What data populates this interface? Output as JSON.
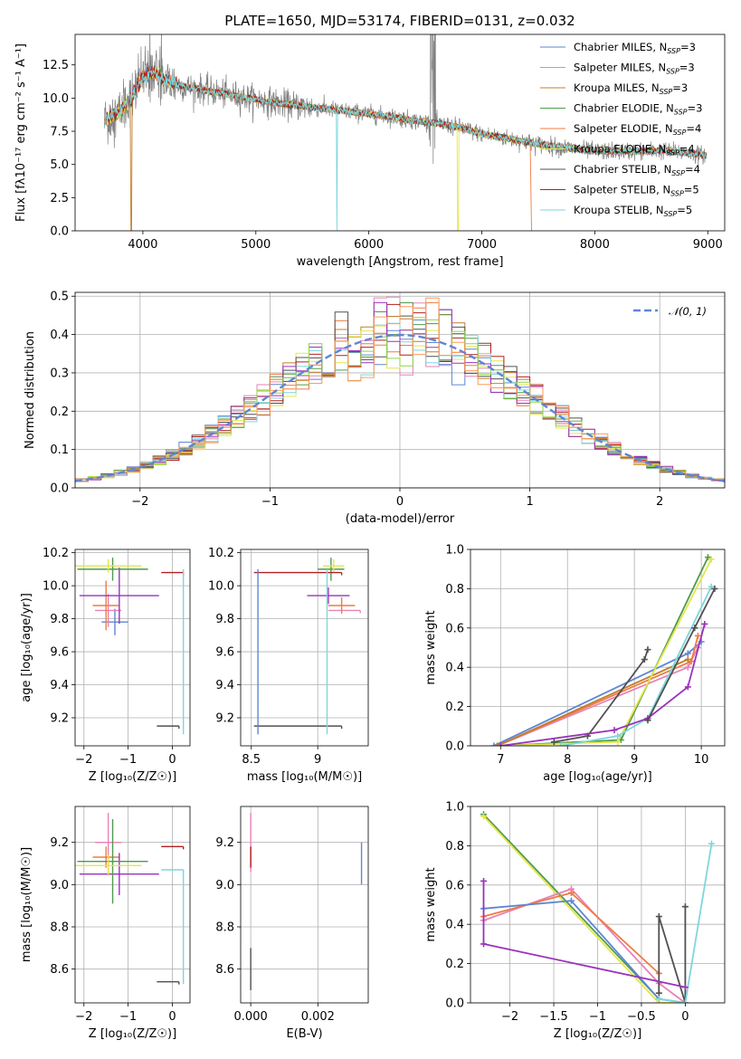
{
  "title": "PLATE=1650, MJD=53174, FIBERID=0131, z=0.032",
  "palette": [
    "#5f86d4",
    "#e883b7",
    "#c07f2b",
    "#4f9a4f",
    "#ef7b43",
    "#e4e64a",
    "#505050",
    "#b02020",
    "#7fd6dc",
    "#9933bb",
    "#8bd64a",
    "#ff9a57"
  ],
  "chart_data": [
    {
      "id": "spectrum",
      "type": "line",
      "xlabel": "wavelength [Angstrom, rest frame]",
      "ylabel": "Flux [fλ10⁻¹⁷ erg cm⁻² s⁻¹ A⁻¹]",
      "xlim": [
        3400,
        9150
      ],
      "ylim": [
        0,
        14.8
      ],
      "xticks": [
        4000,
        5000,
        6000,
        7000,
        8000,
        9000
      ],
      "yticks": [
        0.0,
        2.5,
        5.0,
        7.5,
        10.0,
        12.5
      ],
      "legend_position": "upper-right",
      "legend": [
        "Chabrier MILES, N_SSP=3",
        "Salpeter MILES, N_SSP=3",
        "Kroupa MILES, N_SSP=3",
        "Chabrier ELODIE, N_SSP=3",
        "Salpeter ELODIE, N_SSP=4",
        "Kroupa ELODIE, N_SSP=4",
        "Chabrier STELIB, N_SSP=4",
        "Salpeter STELIB, N_SSP=5",
        "Kroupa STELIB, N_SSP=5"
      ],
      "model_continuum": {
        "wavelength": [
          3650,
          3800,
          3900,
          4000,
          4100,
          4200,
          4300,
          4400,
          4500,
          4600,
          4800,
          5000,
          5200,
          5400,
          5600,
          5800,
          6000,
          6200,
          6400,
          6600,
          6800,
          7000,
          7200,
          7400,
          7600,
          7800,
          8000,
          8200,
          8400,
          8600,
          8800,
          8980
        ],
        "flux": [
          8.3,
          9.0,
          10.0,
          11.6,
          11.9,
          11.4,
          11.0,
          10.8,
          10.7,
          10.5,
          10.2,
          9.9,
          9.6,
          9.4,
          9.2,
          9.0,
          8.8,
          8.6,
          8.3,
          8.1,
          7.8,
          7.3,
          7.0,
          6.7,
          6.4,
          6.2,
          6.0,
          6.0,
          6.0,
          6.05,
          5.9,
          5.7
        ]
      },
      "model_gaps": [
        {
          "model": "Kroupa MILES",
          "start": 3900,
          "end": 3905
        },
        {
          "model": "Kroupa STELIB",
          "start": 5720,
          "end": 5725
        },
        {
          "model": "Kroupa ELODIE",
          "start": 6790,
          "end": 6795
        },
        {
          "model": "Salpeter ELODIE",
          "start": 7430,
          "end": 9000
        }
      ]
    },
    {
      "id": "residuals",
      "type": "histogram",
      "xlabel": "(data-model)/error",
      "ylabel": "Normed distribution",
      "xlim": [
        -2.5,
        2.5
      ],
      "ylim": [
        0,
        0.51
      ],
      "xticks": [
        -2,
        -1,
        0,
        1,
        2
      ],
      "yticks": [
        0.0,
        0.1,
        0.2,
        0.3,
        0.4,
        0.5
      ],
      "bin_width": 0.1,
      "reference": {
        "label": "𝒩(0, 1)",
        "style": "dashed",
        "color": "#5f86d4",
        "mean": 0,
        "sigma": 1
      },
      "legend_position": "upper-right"
    },
    {
      "id": "age-vs-Z",
      "type": "errorbar",
      "xlabel": "Z [log₁₀(Z/Z☉)]",
      "ylabel": "age  [log₁₀(age/yr)]",
      "xlim": [
        -2.2,
        0.4
      ],
      "ylim": [
        9.03,
        10.22
      ],
      "xticks": [
        -2,
        -1,
        0
      ],
      "yticks": [
        9.2,
        9.4,
        9.6,
        9.8,
        10.0,
        10.2
      ],
      "points": [
        {
          "x": -1.3,
          "y": 9.78,
          "xerr": 0.3,
          "yerr": 0.08,
          "color": "#5f86d4"
        },
        {
          "x": -1.45,
          "y": 9.85,
          "xerr": 0.3,
          "yerr": 0.1,
          "color": "#e883b7"
        },
        {
          "x": -1.5,
          "y": 9.88,
          "xerr": 0.3,
          "yerr": 0.15,
          "color": "#ef7b43"
        },
        {
          "x": -1.2,
          "y": 9.94,
          "xerr": 0.9,
          "yerr": 0.17,
          "color": "#9933bb"
        },
        {
          "x": -1.35,
          "y": 10.1,
          "xerr": 0.8,
          "yerr": 0.07,
          "color": "#4f9a4f"
        },
        {
          "x": -1.45,
          "y": 10.12,
          "xerr": 0.75,
          "yerr": 0.04,
          "color": "#e4e64a"
        },
        {
          "x": 0.0,
          "y": 10.08,
          "xerr": 0.25,
          "yerr": 0.0,
          "color": "#b02020"
        },
        {
          "x": -0.1,
          "y": 9.15,
          "xerr": 0.25,
          "yerr": 0.0,
          "color": "#505050"
        },
        {
          "x": 0.25,
          "y": 9.6,
          "xerr": 0.0,
          "yerr": 0.5,
          "color": "#7fd6dc"
        }
      ]
    },
    {
      "id": "age-vs-mass",
      "type": "errorbar",
      "xlabel": "mass [log₁₀(M/M☉)]",
      "ylabel": "",
      "xlim": [
        8.42,
        9.38
      ],
      "ylim": [
        9.03,
        10.22
      ],
      "xticks": [
        8.5,
        9.0
      ],
      "yticks": [
        9.2,
        9.4,
        9.6,
        9.8,
        10.0,
        10.2
      ],
      "points": [
        {
          "x": 9.2,
          "y": 9.85,
          "xerr": 0.12,
          "yerr": 0.0,
          "color": "#e883b7"
        },
        {
          "x": 9.18,
          "y": 9.88,
          "xerr": 0.1,
          "yerr": 0.05,
          "color": "#ef7b43"
        },
        {
          "x": 9.08,
          "y": 9.94,
          "xerr": 0.16,
          "yerr": 0.05,
          "color": "#9933bb"
        },
        {
          "x": 9.1,
          "y": 10.1,
          "xerr": 0.1,
          "yerr": 0.07,
          "color": "#4f9a4f"
        },
        {
          "x": 9.12,
          "y": 10.12,
          "xerr": 0.08,
          "yerr": 0.04,
          "color": "#e4e64a"
        },
        {
          "x": 8.85,
          "y": 10.08,
          "xerr": 0.33,
          "yerr": 0.0,
          "color": "#b02020"
        },
        {
          "x": 8.85,
          "y": 9.15,
          "xerr": 0.33,
          "yerr": 0.0,
          "color": "#505050"
        },
        {
          "x": 9.07,
          "y": 9.6,
          "xerr": 0.0,
          "yerr": 0.5,
          "color": "#7fd6dc"
        },
        {
          "x": 8.55,
          "y": 9.6,
          "xerr": 0.0,
          "yerr": 0.5,
          "color": "#5f86d4"
        }
      ]
    },
    {
      "id": "weight-vs-age",
      "type": "line",
      "xlabel": "age  [log₁₀(age/yr)]",
      "ylabel": "mass weight",
      "xlim": [
        6.55,
        10.35
      ],
      "ylim": [
        0,
        1.0
      ],
      "xticks": [
        7,
        8,
        9,
        10
      ],
      "yticks": [
        0.0,
        0.2,
        0.4,
        0.6,
        0.8,
        1.0
      ],
      "series": [
        {
          "color": "#5f86d4",
          "x": [
            6.9,
            9.8,
            10.0
          ],
          "y": [
            0.0,
            0.47,
            0.53
          ]
        },
        {
          "color": "#e883b7",
          "x": [
            6.95,
            9.8,
            9.95
          ],
          "y": [
            0.0,
            0.4,
            0.5
          ]
        },
        {
          "color": "#ef7b43",
          "x": [
            6.95,
            9.85,
            9.95
          ],
          "y": [
            0.0,
            0.43,
            0.56
          ]
        },
        {
          "color": "#c07f2b",
          "x": [
            6.95,
            9.8
          ],
          "y": [
            0.0,
            0.44
          ]
        },
        {
          "color": "#4f9a4f",
          "x": [
            7.0,
            8.8,
            10.1
          ],
          "y": [
            0.0,
            0.03,
            0.96
          ]
        },
        {
          "color": "#e4e64a",
          "x": [
            7.0,
            8.75,
            10.15
          ],
          "y": [
            0.0,
            0.02,
            0.95
          ]
        },
        {
          "color": "#505050",
          "x": [
            7.8,
            8.3,
            9.15,
            9.2
          ],
          "y": [
            0.02,
            0.05,
            0.44,
            0.49
          ]
        },
        {
          "color": "#7fd6dc",
          "x": [
            7.9,
            8.75,
            9.2,
            10.15
          ],
          "y": [
            0.0,
            0.05,
            0.14,
            0.81
          ]
        },
        {
          "color": "#9933bb",
          "x": [
            7.0,
            8.7,
            9.2,
            9.8,
            10.05
          ],
          "y": [
            0.0,
            0.08,
            0.14,
            0.3,
            0.62
          ]
        },
        {
          "color": "#505050",
          "x": [
            9.2,
            9.9,
            10.2
          ],
          "y": [
            0.13,
            0.6,
            0.8
          ]
        }
      ]
    },
    {
      "id": "mass-vs-Z",
      "type": "errorbar",
      "xlabel": "Z [log₁₀(Z/Z☉)]",
      "ylabel": "mass [log₁₀(M/M☉)]",
      "xlim": [
        -2.2,
        0.4
      ],
      "ylim": [
        8.44,
        9.37
      ],
      "xticks": [
        -2,
        -1,
        0
      ],
      "yticks": [
        8.6,
        8.8,
        9.0,
        9.2
      ],
      "points": [
        {
          "x": -1.45,
          "y": 9.2,
          "xerr": 0.3,
          "yerr": 0.14,
          "color": "#e883b7"
        },
        {
          "x": -1.5,
          "y": 9.13,
          "xerr": 0.3,
          "yerr": 0.05,
          "color": "#ef7b43"
        },
        {
          "x": -1.2,
          "y": 9.05,
          "xerr": 0.9,
          "yerr": 0.1,
          "color": "#9933bb"
        },
        {
          "x": -1.35,
          "y": 9.11,
          "xerr": 0.8,
          "yerr": 0.2,
          "color": "#4f9a4f"
        },
        {
          "x": -1.45,
          "y": 9.09,
          "xerr": 0.75,
          "yerr": 0.05,
          "color": "#e4e64a"
        },
        {
          "x": 0.0,
          "y": 9.18,
          "xerr": 0.25,
          "yerr": 0.0,
          "color": "#b02020"
        },
        {
          "x": -0.1,
          "y": 8.54,
          "xerr": 0.25,
          "yerr": 0.0,
          "color": "#505050"
        },
        {
          "x": 0.25,
          "y": 8.8,
          "xerr": 0.0,
          "yerr": 0.27,
          "color": "#7fd6dc"
        },
        {
          "x": 0.0,
          "y": 9.07,
          "xerr": 0.25,
          "yerr": 0.0,
          "color": "#7fd6dc"
        }
      ]
    },
    {
      "id": "mass-vs-EBV",
      "type": "errorbar",
      "xlabel": "E(B-V)",
      "ylabel": "",
      "xlim": [
        -0.0003,
        0.0035
      ],
      "ylim": [
        8.44,
        9.37
      ],
      "xticks": [
        0.0,
        0.002
      ],
      "xtick_labels": [
        "0.000",
        "0.002"
      ],
      "yticks": [
        8.6,
        8.8,
        9.0,
        9.2
      ],
      "points": [
        {
          "x": 0.0,
          "y": 9.2,
          "xerr": 0.0,
          "yerr": 0.14,
          "color": "#e883b7"
        },
        {
          "x": 0.0,
          "y": 9.13,
          "xerr": 0.0,
          "yerr": 0.05,
          "color": "#b02020"
        },
        {
          "x": 0.0,
          "y": 8.6,
          "xerr": 0.0,
          "yerr": 0.1,
          "color": "#505050"
        },
        {
          "x": 0.0033,
          "y": 9.1,
          "xerr": 0.0,
          "yerr": 0.1,
          "color": "#5f86d4"
        }
      ]
    },
    {
      "id": "weight-vs-Z",
      "type": "line",
      "xlabel": "Z [log₁₀(Z/Z☉)]",
      "ylabel": "mass weight",
      "xlim": [
        -2.45,
        0.45
      ],
      "ylim": [
        0,
        1.0
      ],
      "xticks": [
        -2.0,
        -1.5,
        -1.0,
        -0.5,
        0.0
      ],
      "yticks": [
        0.0,
        0.2,
        0.4,
        0.6,
        0.8,
        1.0
      ],
      "series": [
        {
          "color": "#4f9a4f",
          "x": [
            -2.3,
            -0.3,
            0.0
          ],
          "y": [
            0.96,
            0.02,
            0.0
          ]
        },
        {
          "color": "#e4e64a",
          "x": [
            -2.3,
            -0.3,
            0.0
          ],
          "y": [
            0.95,
            0.0,
            0.0
          ]
        },
        {
          "color": "#e883b7",
          "x": [
            -2.3,
            -1.3,
            -0.3,
            0.0
          ],
          "y": [
            0.42,
            0.58,
            0.1,
            0.0
          ]
        },
        {
          "color": "#ef7b43",
          "x": [
            -2.3,
            -1.3,
            -0.3
          ],
          "y": [
            0.44,
            0.56,
            0.15
          ]
        },
        {
          "color": "#5f86d4",
          "x": [
            -2.3,
            -1.3,
            -0.3,
            0.0
          ],
          "y": [
            0.48,
            0.52,
            0.02,
            0.0
          ]
        },
        {
          "color": "#505050",
          "x": [
            -0.3,
            -0.3,
            0.0,
            0.0
          ],
          "y": [
            0.05,
            0.44,
            0.0,
            0.49
          ]
        },
        {
          "color": "#7fd6dc",
          "x": [
            -0.3,
            0.0,
            0.3
          ],
          "y": [
            0.02,
            0.0,
            0.81
          ]
        },
        {
          "color": "#9933bb",
          "x": [
            -2.3,
            -2.3,
            0.0
          ],
          "y": [
            0.62,
            0.3,
            0.08
          ]
        }
      ]
    }
  ]
}
